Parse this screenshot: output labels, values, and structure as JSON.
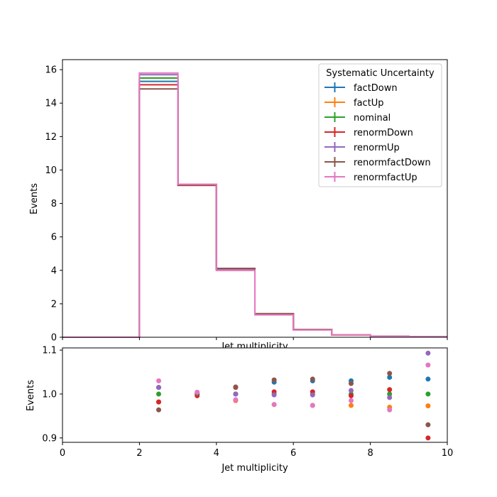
{
  "chart_data": [
    {
      "type": "histogram",
      "xlabel": "Jet multiplicity",
      "ylabel": "Events",
      "xlim": [
        0,
        10
      ],
      "ylim": [
        0,
        16.6
      ],
      "yticks": [
        0,
        2,
        4,
        6,
        8,
        10,
        12,
        14,
        16
      ],
      "bin_edges": [
        0,
        1,
        2,
        3,
        4,
        5,
        6,
        7,
        8,
        9,
        10
      ],
      "legend": {
        "title": "Systematic Uncertainty",
        "position": "top-right"
      },
      "series": [
        {
          "name": "factDown",
          "color": "#1f77b4",
          "values": [
            0,
            0,
            15.3,
            9.1,
            4.05,
            1.4,
            0.45,
            0.15,
            0.06,
            0.03
          ]
        },
        {
          "name": "factUp",
          "color": "#ff7f0e",
          "values": [
            0,
            0,
            15.5,
            9.15,
            4.0,
            1.35,
            0.44,
            0.14,
            0.055,
            0.028
          ]
        },
        {
          "name": "nominal",
          "color": "#2ca02c",
          "values": [
            0,
            0,
            15.5,
            9.12,
            4.05,
            1.37,
            0.445,
            0.145,
            0.057,
            0.029
          ]
        },
        {
          "name": "renormDown",
          "color": "#d62728",
          "values": [
            0,
            0,
            15.1,
            9.08,
            4.1,
            1.38,
            0.45,
            0.145,
            0.058,
            0.026
          ]
        },
        {
          "name": "renormUp",
          "color": "#9467bd",
          "values": [
            0,
            0,
            15.7,
            9.15,
            4.05,
            1.37,
            0.445,
            0.146,
            0.056,
            0.032
          ]
        },
        {
          "name": "renormfactDown",
          "color": "#8c564b",
          "values": [
            0,
            0,
            14.85,
            9.1,
            4.12,
            1.41,
            0.46,
            0.148,
            0.06,
            0.027
          ]
        },
        {
          "name": "renormfactUp",
          "color": "#e377c2",
          "values": [
            0,
            0,
            15.8,
            9.15,
            4.0,
            1.34,
            0.435,
            0.143,
            0.055,
            0.031
          ]
        }
      ]
    },
    {
      "type": "scatter",
      "xlabel": "Jet multiplicity",
      "ylabel": "Events",
      "xlim": [
        0,
        10
      ],
      "ylim": [
        0.89,
        1.105
      ],
      "xticks": [
        0,
        2,
        4,
        6,
        8,
        10
      ],
      "yticks": [
        0.9,
        1.0,
        1.1
      ],
      "x": [
        2.5,
        3.5,
        4.5,
        5.5,
        6.5,
        7.5,
        8.5,
        9.5
      ],
      "series": [
        {
          "name": "factDown",
          "color": "#1f77b4",
          "values": [
            1.015,
            1.0,
            1.0,
            1.027,
            1.03,
            1.03,
            1.038,
            1.034
          ]
        },
        {
          "name": "factUp",
          "color": "#ff7f0e",
          "values": [
            0.982,
            1.0,
            0.985,
            0.976,
            0.974,
            0.974,
            0.97,
            0.973
          ]
        },
        {
          "name": "nominal",
          "color": "#2ca02c",
          "values": [
            1.0,
            1.0,
            1.0,
            1.0,
            1.0,
            1.0,
            1.0,
            1.0
          ]
        },
        {
          "name": "renormDown",
          "color": "#d62728",
          "values": [
            0.982,
            0.996,
            1.015,
            1.005,
            1.005,
            0.996,
            1.01,
            0.9
          ]
        },
        {
          "name": "renormUp",
          "color": "#9467bd",
          "values": [
            1.015,
            1.004,
            1.0,
            0.998,
            0.998,
            1.008,
            0.992,
            1.093
          ]
        },
        {
          "name": "renormfactDown",
          "color": "#8c564b",
          "values": [
            0.964,
            1.0,
            1.016,
            1.032,
            1.034,
            1.024,
            1.047,
            0.93
          ]
        },
        {
          "name": "renormfactUp",
          "color": "#e377c2",
          "values": [
            1.03,
            1.004,
            0.987,
            0.976,
            0.974,
            0.985,
            0.964,
            1.066
          ]
        }
      ]
    }
  ]
}
